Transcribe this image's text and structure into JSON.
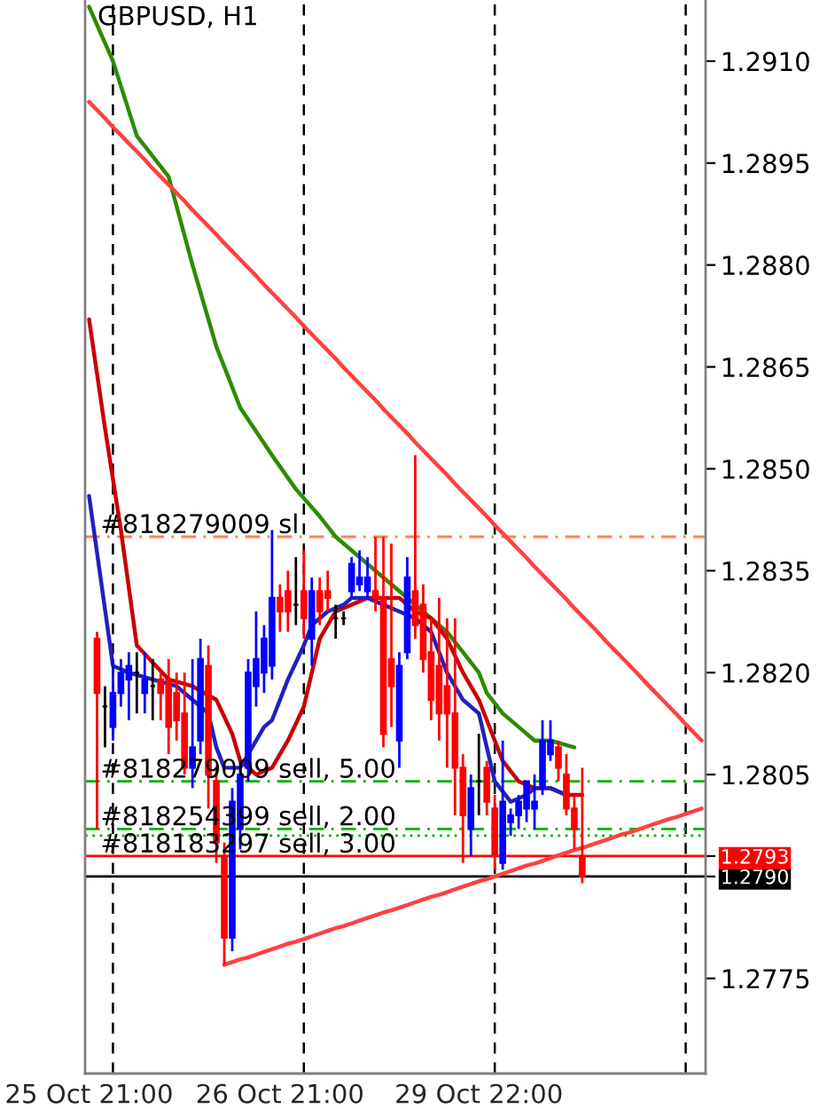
{
  "chart_data": {
    "type": "candlestick",
    "title": "GBPUSD, H1",
    "categories": [
      "25 Oct 21:00",
      null,
      null,
      null,
      null,
      null,
      null,
      null,
      null,
      null,
      null,
      null,
      null,
      null,
      null,
      null,
      null,
      null,
      null,
      null,
      null,
      null,
      null,
      null,
      "26 Oct 21:00",
      null,
      null,
      null,
      null,
      null,
      null,
      null,
      null,
      null,
      null,
      null,
      null,
      null,
      null,
      null,
      null,
      null,
      null,
      null,
      null,
      null,
      null,
      null,
      null,
      "29 Oct 22:00",
      null,
      null,
      null,
      null,
      null,
      null,
      null,
      null,
      null,
      null,
      null,
      null,
      null,
      null,
      null,
      null,
      null,
      null,
      null,
      null,
      null,
      null,
      null,
      null,
      null,
      null,
      null,
      null
    ],
    "ohlc": [
      null,
      [
        1.2825,
        1.2826,
        1.2797,
        1.2817
      ],
      [
        1.2815,
        1.2818,
        1.2809,
        1.2815
      ],
      [
        1.2812,
        1.2822,
        1.281,
        1.2817
      ],
      [
        1.2817,
        1.2822,
        1.2815,
        1.282
      ],
      [
        1.2819,
        1.2823,
        1.2813,
        1.2821
      ],
      [
        1.282,
        1.2823,
        1.2814,
        1.282
      ],
      [
        1.2817,
        1.2823,
        1.2814,
        1.2819
      ],
      [
        1.2818,
        1.2822,
        1.2813,
        1.2818
      ],
      [
        1.2819,
        1.282,
        1.2813,
        1.2817
      ],
      [
        1.2819,
        1.2822,
        1.2808,
        1.2812
      ],
      [
        1.2817,
        1.282,
        1.281,
        1.2813
      ],
      [
        1.2814,
        1.282,
        1.2805,
        1.2806
      ],
      [
        1.2806,
        1.2822,
        1.2803,
        1.2809
      ],
      [
        1.281,
        1.2825,
        1.2808,
        1.2822
      ],
      [
        1.2821,
        1.2824,
        1.28,
        1.2805
      ],
      [
        1.2804,
        1.2806,
        1.2792,
        1.2795
      ],
      [
        1.2793,
        1.2795,
        1.2777,
        1.2781
      ],
      [
        1.2781,
        1.2803,
        1.2779,
        1.2801
      ],
      [
        1.2797,
        1.2807,
        1.2794,
        1.2805
      ],
      [
        1.2806,
        1.2822,
        1.2804,
        1.282
      ],
      [
        1.2818,
        1.2829,
        1.2815,
        1.2822
      ],
      [
        1.282,
        1.2827,
        1.2817,
        1.2825
      ],
      [
        1.2821,
        1.2841,
        1.2819,
        1.2831
      ],
      [
        1.2831,
        1.2833,
        1.2826,
        1.2829
      ],
      [
        1.2832,
        1.2835,
        1.2826,
        1.2829
      ],
      [
        1.283,
        1.2837,
        1.2827,
        1.283
      ],
      [
        1.2832,
        1.2838,
        1.2825,
        1.2828
      ],
      [
        1.2825,
        1.2834,
        1.2821,
        1.2832
      ],
      [
        1.2832,
        1.2834,
        1.2827,
        1.2829
      ],
      [
        1.2832,
        1.2835,
        1.2829,
        1.2831
      ],
      [
        1.2828,
        1.283,
        1.2825,
        1.2828
      ],
      [
        1.2828,
        1.2829,
        1.2827,
        1.2828
      ],
      [
        1.2832,
        1.2837,
        1.2831,
        1.2836
      ],
      [
        1.2833,
        1.2838,
        1.2832,
        1.2834
      ],
      [
        1.2832,
        1.2837,
        1.2831,
        1.2834
      ],
      [
        1.2832,
        1.284,
        1.2829,
        1.2831
      ],
      [
        1.2831,
        1.284,
        1.2809,
        1.2811
      ],
      [
        1.2822,
        1.2839,
        1.2812,
        1.2818
      ],
      [
        1.281,
        1.2823,
        1.2806,
        1.2821
      ],
      [
        1.2823,
        1.2837,
        1.2822,
        1.2834
      ],
      [
        1.2832,
        1.2852,
        1.2825,
        1.2827
      ],
      [
        1.283,
        1.2833,
        1.282,
        1.2822
      ],
      [
        1.2823,
        1.2828,
        1.2813,
        1.2816
      ],
      [
        1.2821,
        1.2831,
        1.281,
        1.2814
      ],
      [
        1.2818,
        1.2828,
        1.2806,
        1.2814
      ],
      [
        1.2814,
        1.2828,
        1.2799,
        1.2806
      ],
      [
        1.2806,
        1.2808,
        1.2792,
        1.2799
      ],
      [
        1.2797,
        1.2805,
        1.2793,
        1.2803
      ],
      [
        1.2804,
        1.2811,
        1.2799,
        1.2804
      ],
      [
        1.2806,
        1.2807,
        1.2799,
        1.2801
      ],
      [
        1.28,
        1.2802,
        1.2791,
        1.2793
      ],
      [
        1.2792,
        1.281,
        1.2791,
        1.2801
      ],
      [
        1.2798,
        1.28,
        1.2796,
        1.2799
      ],
      [
        1.2799,
        1.2802,
        1.2797,
        1.2801
      ],
      [
        1.28,
        1.2804,
        1.2798,
        1.2804
      ],
      [
        1.28,
        1.2805,
        1.2797,
        1.2801
      ],
      [
        1.2803,
        1.2813,
        1.2802,
        1.281
      ],
      [
        1.2808,
        1.2813,
        1.2807,
        1.281
      ],
      [
        1.2809,
        1.281,
        1.2804,
        1.2806
      ],
      [
        1.2805,
        1.2808,
        1.2799,
        1.28
      ],
      [
        1.28,
        1.2802,
        1.2794,
        1.2797
      ],
      [
        1.2793,
        1.2806,
        1.2789,
        1.279
      ],
      null,
      null,
      null,
      null,
      null,
      null,
      null,
      null,
      null,
      null,
      null,
      null,
      null,
      null,
      null
    ],
    "colors": [
      null,
      "#ff0000",
      "#000000",
      "#0000ff",
      "#0000ff",
      "#0000ff",
      "#000000",
      "#0000ff",
      "#000000",
      "#ff0000",
      "#ff0000",
      "#ff0000",
      "#ff0000",
      "#0000ff",
      "#0000ff",
      "#ff0000",
      "#ff0000",
      "#ff0000",
      "#0000ff",
      "#0000ff",
      "#0000ff",
      "#0000ff",
      "#0000ff",
      "#0000ff",
      "#ff0000",
      "#ff0000",
      "#000000",
      "#ff0000",
      "#0000ff",
      "#ff0000",
      "#ff0000",
      "#000000",
      "#000000",
      "#0000ff",
      "#0000ff",
      "#0000ff",
      "#ff0000",
      "#ff0000",
      "#ff0000",
      "#0000ff",
      "#0000ff",
      "#ff0000",
      "#ff0000",
      "#ff0000",
      "#ff0000",
      "#ff0000",
      "#ff0000",
      "#ff0000",
      "#0000ff",
      "#000000",
      "#ff0000",
      "#ff0000",
      "#0000ff",
      "#0000ff",
      "#0000ff",
      "#0000ff",
      "#0000ff",
      "#0000ff",
      "#0000ff",
      "#ff0000",
      "#ff0000",
      "#ff0000",
      "#ff0000",
      null,
      null,
      null,
      null,
      null,
      null,
      null,
      null,
      null,
      null,
      null,
      null,
      null,
      null,
      null
    ],
    "series": [
      {
        "type": "line",
        "color": "#2e8b00",
        "values": [
          1.2918,
          null,
          null,
          1.291,
          null,
          null,
          1.2899,
          null,
          null,
          null,
          1.2893,
          null,
          null,
          1.288,
          null,
          null,
          1.2868,
          null,
          null,
          1.2859,
          null,
          null,
          null,
          1.2852,
          null,
          null,
          1.2847,
          null,
          null,
          1.2843,
          null,
          1.284,
          null,
          null,
          1.2837,
          null,
          null,
          1.2834,
          null,
          1.2832,
          null,
          1.283,
          null,
          1.2828,
          null,
          1.2826,
          null,
          1.2823,
          null,
          1.282,
          1.2817,
          null,
          1.2814,
          null,
          1.2812,
          null,
          1.281,
          null,
          1.281,
          null,
          null,
          1.2809,
          null,
          null,
          null,
          null,
          null,
          null,
          null,
          null,
          null,
          null,
          null,
          null,
          null,
          null,
          null,
          null
        ]
      },
      {
        "type": "line",
        "color": "#c80000",
        "values": [
          1.2872,
          null,
          1.2856,
          null,
          1.2841,
          null,
          1.2824,
          null,
          null,
          null,
          1.2819,
          null,
          null,
          1.2818,
          null,
          null,
          1.2816,
          null,
          1.2811,
          1.2807,
          null,
          1.2805,
          null,
          1.2806,
          null,
          1.281,
          null,
          1.2815,
          null,
          1.2825,
          null,
          1.2829,
          null,
          1.283,
          null,
          1.2831,
          null,
          1.2831,
          null,
          1.2831,
          null,
          1.2829,
          null,
          1.2828,
          null,
          1.2825,
          null,
          1.282,
          null,
          1.2816,
          1.2813,
          null,
          1.2807,
          null,
          1.2804,
          null,
          1.2803,
          null,
          1.2803,
          null,
          1.2802,
          null,
          1.2802,
          null,
          null,
          null,
          null,
          null,
          null,
          null,
          null,
          null,
          null,
          null,
          null,
          null,
          null,
          null
        ]
      },
      {
        "type": "line",
        "color": "#2020c0",
        "values": [
          1.2846,
          null,
          null,
          1.2821,
          null,
          1.282,
          null,
          null,
          1.2819,
          null,
          null,
          1.2818,
          null,
          1.2816,
          null,
          1.2814,
          1.2809,
          1.2806,
          null,
          1.2806,
          1.2808,
          null,
          1.2812,
          1.2813,
          null,
          1.2819,
          null,
          1.2824,
          1.2827,
          null,
          1.2829,
          null,
          1.283,
          1.2831,
          null,
          1.2831,
          null,
          1.283,
          null,
          1.2829,
          null,
          1.2828,
          null,
          1.2826,
          null,
          1.282,
          null,
          1.2816,
          null,
          1.2814,
          1.2809,
          1.2804,
          null,
          1.2801,
          null,
          1.2802,
          1.2803,
          null,
          1.2803,
          null,
          1.2802,
          null,
          null,
          null,
          null,
          null,
          null,
          null,
          null,
          null,
          null,
          null,
          null,
          null,
          null,
          null,
          null,
          null
        ]
      },
      {
        "type": "line",
        "color": "#ff4040",
        "values": [
          1.2904,
          1.29028,
          1.29016,
          1.29003,
          1.28991,
          1.28979,
          1.28967,
          1.28955,
          1.28942,
          1.2893,
          1.28918,
          1.28906,
          1.28894,
          1.28881,
          1.28869,
          1.28857,
          1.28845,
          1.28832,
          1.2882,
          1.28808,
          1.28796,
          1.28784,
          1.28771,
          1.28759,
          1.28747,
          1.28735,
          1.28723,
          1.2871,
          1.28698,
          1.28686,
          1.28674,
          1.28662,
          1.28649,
          1.28637,
          1.28625,
          1.28613,
          1.28601,
          1.28588,
          1.28576,
          1.28564,
          1.28552,
          1.28539,
          1.28527,
          1.28515,
          1.28503,
          1.28491,
          1.28478,
          1.28466,
          1.28454,
          1.28442,
          1.2843,
          1.28417,
          1.28405,
          1.28393,
          1.28381,
          1.28369,
          1.28356,
          1.28344,
          1.28332,
          1.2832,
          1.28308,
          1.28295,
          1.28283,
          1.28271,
          1.28259,
          1.28246,
          1.28234,
          1.28222,
          1.2821,
          1.28198,
          1.28185,
          1.28173,
          1.28161,
          1.28149,
          1.28137,
          1.28124,
          1.28112,
          1.281
        ]
      },
      {
        "type": "line",
        "color": "#ff4040",
        "values": [
          null,
          null,
          null,
          null,
          null,
          null,
          null,
          null,
          null,
          null,
          null,
          null,
          null,
          null,
          null,
          null,
          null,
          1.2777,
          1.27774,
          1.27778,
          1.27781,
          1.27785,
          1.27789,
          1.27793,
          1.27797,
          1.27801,
          1.27804,
          1.27808,
          1.27812,
          1.27816,
          1.2782,
          1.27824,
          1.27827,
          1.27831,
          1.27835,
          1.27839,
          1.27843,
          1.27847,
          1.2785,
          1.27854,
          1.27858,
          1.27862,
          1.27866,
          1.2787,
          1.27873,
          1.27877,
          1.27881,
          1.27885,
          1.27889,
          1.27893,
          1.27896,
          1.279,
          1.27904,
          1.27908,
          1.27912,
          1.27916,
          1.27919,
          1.27923,
          1.27927,
          1.27931,
          1.27935,
          1.27939,
          1.27942,
          1.27946,
          1.2795,
          1.27954,
          1.27958,
          1.27962,
          1.27965,
          1.27969,
          1.27973,
          1.27977,
          1.27981,
          1.27985,
          1.27988,
          1.27992,
          1.27996,
          1.28
        ]
      }
    ],
    "ylim": [
      1.2761,
      1.2919
    ],
    "yticks": [
      {
        "value": 1.2775,
        "label": "1.2775"
      },
      {
        "value": 1.279,
        "label": "1.2790"
      },
      {
        "value": 1.2793,
        "label": "1.2793"
      },
      {
        "value": 1.2805,
        "label": "1.2805"
      },
      {
        "value": 1.282,
        "label": "1.2820"
      },
      {
        "value": 1.2835,
        "label": "1.2835"
      },
      {
        "value": 1.285,
        "label": "1.2850"
      },
      {
        "value": 1.2865,
        "label": "1.2865"
      },
      {
        "value": 1.288,
        "label": "1.2880"
      },
      {
        "value": 1.2895,
        "label": "1.2895"
      },
      {
        "value": 1.291,
        "label": "1.2910"
      }
    ],
    "ref_lines": [
      {
        "axis": "y",
        "value": 1.284,
        "label": "#818279009 sl",
        "color": "#ff7f50",
        "line_style": "dashdot"
      },
      {
        "axis": "y",
        "value": 1.2804,
        "label": "#818279009 sell, 5.00",
        "color": "#00b000",
        "line_style": "dashdot"
      },
      {
        "axis": "y",
        "value": 1.2797,
        "label": "#818254399 sell, 2.00",
        "color": "#00b000",
        "line_style": "dashdot"
      },
      {
        "axis": "y",
        "value": 1.2796,
        "color": "#00b000",
        "line_style": "dotted"
      },
      {
        "axis": "y",
        "value": 1.2793,
        "label": "#818183297 sell, 3.00",
        "color": "#ff0000",
        "line_style": "solid"
      },
      {
        "axis": "y",
        "value": 1.279,
        "color": "#000000",
        "line_style": "solid"
      }
    ],
    "grid": false,
    "legend": false
  }
}
